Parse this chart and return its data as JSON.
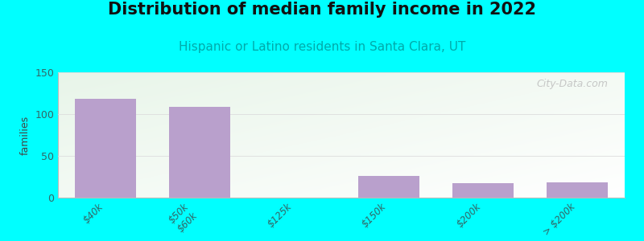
{
  "title": "Distribution of median family income in 2022",
  "subtitle": "Hispanic or Latino residents in Santa Clara, UT",
  "categories": [
    "$40k",
    "$50k\n$60k",
    "$125k",
    "$150k",
    "$200k",
    "> $200k"
  ],
  "values": [
    118,
    109,
    0,
    26,
    17,
    18
  ],
  "bar_color": "#b9a0cc",
  "ylabel": "families",
  "ylim": [
    0,
    150
  ],
  "yticks": [
    0,
    50,
    100,
    150
  ],
  "background_color": "#00ffff",
  "title_fontsize": 15,
  "subtitle_fontsize": 11,
  "subtitle_color": "#00aaaa",
  "tick_color": "#336666",
  "watermark": "City-Data.com",
  "bar_width": 0.65
}
